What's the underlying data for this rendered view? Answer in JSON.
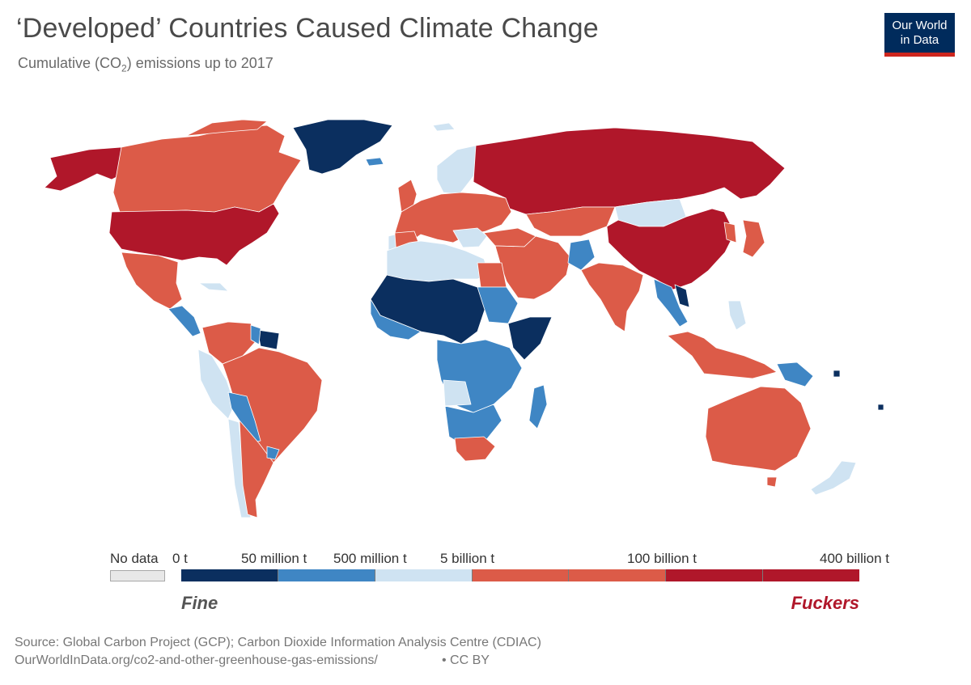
{
  "title": "‘Developed’ Countries Caused Climate Change",
  "subtitle_prefix": "Cumulative (CO",
  "subtitle_sub": "2",
  "subtitle_suffix": ") emissions up to 2017",
  "logo": {
    "line1": "Our World",
    "line2": "in Data"
  },
  "legend": {
    "no_data_label": "No data",
    "ticks": [
      "0 t",
      "50 million t",
      "500 million t",
      "5 billion t",
      "100 billion t",
      "400 billion t"
    ],
    "bin_colors": [
      "#0b2f5f",
      "#3f86c4",
      "#cfe3f2",
      "#dc5b48",
      "#dc5b48",
      "#b0172a",
      "#b0172a"
    ],
    "caption_low": "Fine",
    "caption_high": "Fuckers"
  },
  "colors": {
    "darkblue": "#0b2f5f",
    "blue": "#3f86c4",
    "lightblue": "#cfe3f2",
    "orange": "#dc5b48",
    "red": "#b0172a",
    "nodata": "#e8e8e8"
  },
  "source": "Source: Global Carbon Project (GCP); Carbon Dioxide Information Analysis Centre (CDIAC)",
  "url": "OurWorldInData.org/co2-and-other-greenhouse-gas-emissions/",
  "license": "• CC BY"
}
